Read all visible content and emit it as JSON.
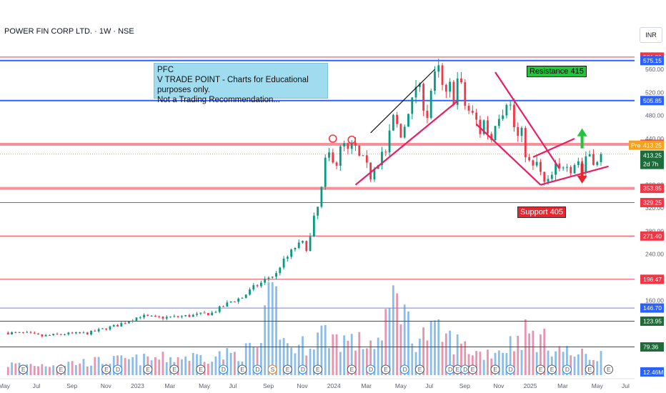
{
  "header": {
    "symbol_title": "POWER FIN CORP LTD. · 1W · NSE",
    "currency": "INR"
  },
  "note": {
    "line1": "PFC",
    "line2": "V TRADE POINT - Charts for Educational purposes only.",
    "line3": "Not a Trading Recommendation..."
  },
  "annotations": {
    "resistance": "Resistance 415",
    "support": "Support 405"
  },
  "colors": {
    "up": "#089981",
    "down": "#f23645",
    "accent_blue": "#2962ff",
    "trend": "#e91e63"
  },
  "chart_data": {
    "type": "candlestick",
    "title": "POWER FIN CORP LTD. · 1W · NSE",
    "ylabel": "INR",
    "ylim": [
      60,
      600
    ],
    "y_ticks": [
      560,
      520,
      480,
      440,
      400,
      360,
      320,
      280,
      240,
      200,
      160,
      120,
      80
    ],
    "x_tick_labels": [
      "May",
      "Jul",
      "Sep",
      "Nov",
      "2023",
      "Mar",
      "May",
      "Jul",
      "Sep",
      "Nov",
      "2024",
      "Mar",
      "May",
      "Jul",
      "Sep",
      "Nov",
      "2025",
      "Mar",
      "May",
      "Jul"
    ],
    "x_tick_weeks": [
      0,
      9,
      18,
      27,
      35,
      44,
      53,
      61,
      70,
      79,
      87,
      96,
      105,
      113,
      122,
      131,
      139,
      148,
      157,
      165
    ],
    "horizontal_levels": [
      {
        "value": 581.2,
        "color": "#f23645",
        "label": "581.20"
      },
      {
        "value": 575.15,
        "color": "#2962ff",
        "label": "575.15"
      },
      {
        "value": 505.85,
        "color": "#2962ff",
        "label": "505.85"
      },
      {
        "value": 430.1,
        "color": "#f23645",
        "label": "430.10"
      },
      {
        "value": 353.85,
        "color": "#f23645",
        "label": "353.85"
      },
      {
        "value": 329.25,
        "color": "#f23645",
        "label": "329.25"
      },
      {
        "value": 271.4,
        "color": "#f23645",
        "label": "271.40"
      },
      {
        "value": 196.47,
        "color": "#f23645",
        "label": "196.47"
      },
      {
        "value": 146.7,
        "color": "#7b7bea",
        "label": "146.70"
      },
      {
        "value": 123.95,
        "color": "#1e6b3a",
        "label": "123.95"
      },
      {
        "value": 79.36,
        "color": "#1e6b3a",
        "label": "79.36"
      }
    ],
    "price_labels": {
      "pre_tag": "Pre",
      "pre_price": "413.25",
      "last_price": "413.25",
      "countdown": "2d 7h",
      "volume": "12.46M"
    },
    "close_anchors": [
      [
        0,
        104
      ],
      [
        6,
        103
      ],
      [
        10,
        98
      ],
      [
        16,
        102
      ],
      [
        22,
        103
      ],
      [
        26,
        110
      ],
      [
        30,
        117
      ],
      [
        33,
        125
      ],
      [
        36,
        133
      ],
      [
        40,
        130
      ],
      [
        45,
        131
      ],
      [
        50,
        134
      ],
      [
        55,
        138
      ],
      [
        58,
        150
      ],
      [
        60,
        158
      ],
      [
        63,
        165
      ],
      [
        66,
        182
      ],
      [
        68,
        190
      ],
      [
        70,
        200
      ],
      [
        72,
        205
      ],
      [
        73,
        220
      ],
      [
        75,
        235
      ],
      [
        77,
        252
      ],
      [
        79,
        258
      ],
      [
        80,
        252
      ],
      [
        81,
        268
      ],
      [
        82,
        300
      ],
      [
        83,
        320
      ],
      [
        84,
        352
      ],
      [
        85,
        398
      ],
      [
        86,
        412
      ],
      [
        87,
        408
      ],
      [
        88,
        398
      ],
      [
        89,
        420
      ],
      [
        90,
        428
      ],
      [
        91,
        416
      ],
      [
        92,
        426
      ],
      [
        93,
        423
      ],
      [
        94,
        406
      ],
      [
        95,
        402
      ],
      [
        96,
        390
      ],
      [
        97,
        375
      ],
      [
        98,
        395
      ],
      [
        99,
        403
      ],
      [
        100,
        418
      ],
      [
        101,
        412
      ],
      [
        102,
        448
      ],
      [
        103,
        474
      ],
      [
        104,
        462
      ],
      [
        105,
        442
      ],
      [
        106,
        464
      ],
      [
        107,
        492
      ],
      [
        108,
        502
      ],
      [
        109,
        532
      ],
      [
        110,
        522
      ],
      [
        111,
        500
      ],
      [
        112,
        482
      ],
      [
        113,
        524
      ],
      [
        114,
        546
      ],
      [
        115,
        558
      ],
      [
        116,
        528
      ],
      [
        117,
        512
      ],
      [
        118,
        530
      ],
      [
        119,
        510
      ],
      [
        120,
        542
      ],
      [
        121,
        528
      ],
      [
        122,
        498
      ],
      [
        123,
        488
      ],
      [
        124,
        480
      ],
      [
        125,
        470
      ],
      [
        126,
        452
      ],
      [
        127,
        470
      ],
      [
        128,
        452
      ],
      [
        129,
        440
      ],
      [
        130,
        470
      ],
      [
        131,
        484
      ],
      [
        132,
        490
      ],
      [
        133,
        508
      ],
      [
        134,
        496
      ],
      [
        135,
        460
      ],
      [
        136,
        442
      ],
      [
        137,
        448
      ],
      [
        138,
        416
      ],
      [
        139,
        398
      ],
      [
        140,
        388
      ],
      [
        141,
        398
      ],
      [
        142,
        378
      ],
      [
        143,
        362
      ],
      [
        144,
        364
      ],
      [
        145,
        375
      ],
      [
        146,
        390
      ],
      [
        147,
        384
      ],
      [
        148,
        396
      ],
      [
        149,
        400
      ],
      [
        150,
        388
      ],
      [
        151,
        398
      ],
      [
        152,
        402
      ],
      [
        153,
        382
      ],
      [
        154,
        410
      ],
      [
        155,
        415
      ],
      [
        156,
        404
      ],
      [
        157,
        396
      ],
      [
        158,
        408
      ]
    ],
    "volume_anchors": [
      [
        0,
        2
      ],
      [
        10,
        2
      ],
      [
        20,
        2.4
      ],
      [
        30,
        2.8
      ],
      [
        38,
        3
      ],
      [
        45,
        3.3
      ],
      [
        55,
        3.6
      ],
      [
        62,
        4
      ],
      [
        68,
        5.5
      ],
      [
        71,
        17.5
      ],
      [
        74,
        6
      ],
      [
        78,
        5
      ],
      [
        84,
        8
      ],
      [
        88,
        7
      ],
      [
        94,
        6
      ],
      [
        100,
        6.5
      ],
      [
        104,
        17
      ],
      [
        108,
        7
      ],
      [
        114,
        8
      ],
      [
        120,
        6
      ],
      [
        126,
        4
      ],
      [
        132,
        5
      ],
      [
        138,
        8
      ],
      [
        144,
        6
      ],
      [
        150,
        4
      ],
      [
        155,
        3.5
      ],
      [
        158,
        3.8
      ]
    ],
    "drawings": {
      "black_segment": [
        [
          97,
          450
        ],
        [
          114,
          560
        ]
      ],
      "rising_trendline": [
        [
          93,
          360
        ],
        [
          120,
          505
        ]
      ],
      "falling_trendline": [
        [
          125,
          465
        ],
        [
          142,
          360
        ]
      ],
      "resistance_diagonal": [
        [
          130,
          555
        ],
        [
          147,
          388
        ]
      ],
      "wedge_upper": [
        [
          140,
          408
        ],
        [
          151,
          440
        ]
      ],
      "wedge_lower": [
        [
          142,
          360
        ],
        [
          160,
          392
        ]
      ],
      "arrow_up_at": [
        153,
        438
      ],
      "arrow_down_at": [
        153,
        382
      ]
    }
  }
}
